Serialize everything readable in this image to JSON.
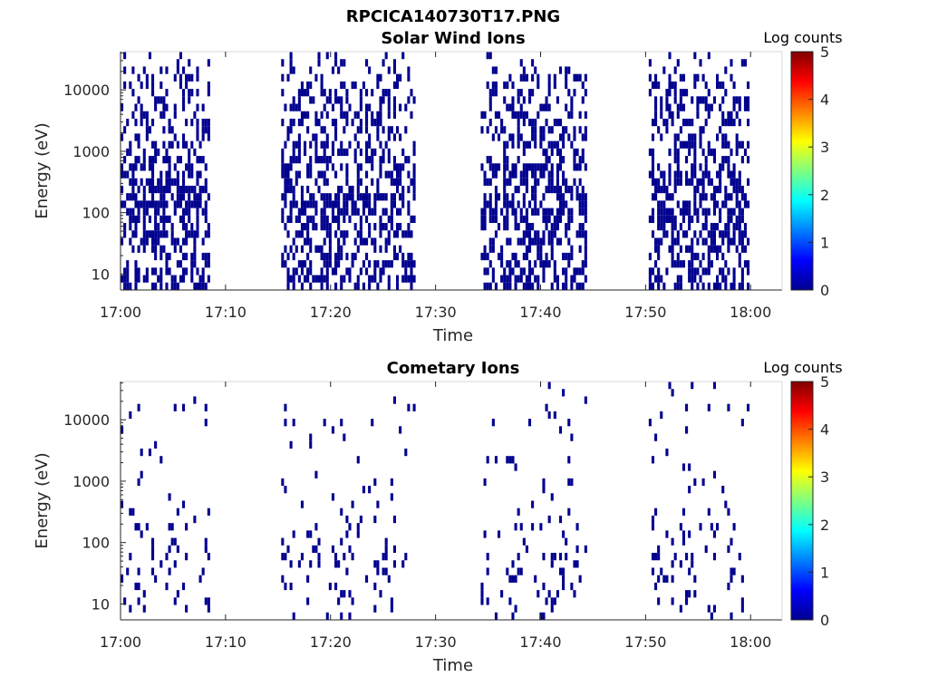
{
  "figure": {
    "title": "RPCICA140730T17.PNG"
  },
  "colors": {
    "low_count": "#00008f",
    "axis": "#262626"
  },
  "chart_data": [
    {
      "type": "heatmap",
      "title": "Solar Wind Ions",
      "xlabel": "Time",
      "ylabel": "Energy (eV)",
      "xticks": [
        "17:00",
        "17:10",
        "17:20",
        "17:30",
        "17:40",
        "17:50",
        "18:00"
      ],
      "xlim": [
        "17:00",
        "18:03"
      ],
      "yscale": "log",
      "yticks": [
        "10",
        "100",
        "1000",
        "10000"
      ],
      "ylim": [
        5.5,
        42000
      ],
      "colorbar": {
        "label": "Log counts",
        "range": [
          0,
          5
        ],
        "ticks": [
          "0",
          "1",
          "2",
          "3",
          "4",
          "5"
        ],
        "colormap": "jet"
      },
      "active_intervals": [
        [
          "17:00",
          "17:08.5"
        ],
        [
          "17:15.3",
          "17:27.9"
        ],
        [
          "17:34.3",
          "17:44.2"
        ],
        [
          "17:50.3",
          "17:59.9"
        ]
      ],
      "density_by_energy": [
        {
          "energy_ev": 10,
          "fraction_nonzero": 0.45
        },
        {
          "energy_ev": 30,
          "fraction_nonzero": 0.45
        },
        {
          "energy_ev": 100,
          "fraction_nonzero": 0.55
        },
        {
          "energy_ev": 300,
          "fraction_nonzero": 0.5
        },
        {
          "energy_ev": 1000,
          "fraction_nonzero": 0.4
        },
        {
          "energy_ev": 3000,
          "fraction_nonzero": 0.35
        },
        {
          "energy_ev": 10000,
          "fraction_nonzero": 0.3
        },
        {
          "energy_ev": 30000,
          "fraction_nonzero": 0.12
        }
      ],
      "typical_log_counts": 0.1
    },
    {
      "type": "heatmap",
      "title": "Cometary Ions",
      "xlabel": "Time",
      "ylabel": "Energy (eV)",
      "xticks": [
        "17:00",
        "17:10",
        "17:20",
        "17:30",
        "17:40",
        "17:50",
        "18:00"
      ],
      "xlim": [
        "17:00",
        "18:03"
      ],
      "yscale": "log",
      "yticks": [
        "10",
        "100",
        "1000",
        "10000"
      ],
      "ylim": [
        5.5,
        42000
      ],
      "colorbar": {
        "label": "Log counts",
        "range": [
          0,
          5
        ],
        "ticks": [
          "0",
          "1",
          "2",
          "3",
          "4",
          "5"
        ],
        "colormap": "jet"
      },
      "active_intervals": [
        [
          "17:00",
          "17:08.5"
        ],
        [
          "17:15.3",
          "17:27.9"
        ],
        [
          "17:34.3",
          "17:44.2"
        ],
        [
          "17:50.3",
          "17:59.9"
        ]
      ],
      "density_by_energy": [
        {
          "energy_ev": 10,
          "fraction_nonzero": 0.08
        },
        {
          "energy_ev": 30,
          "fraction_nonzero": 0.14
        },
        {
          "energy_ev": 100,
          "fraction_nonzero": 0.12
        },
        {
          "energy_ev": 300,
          "fraction_nonzero": 0.06
        },
        {
          "energy_ev": 1000,
          "fraction_nonzero": 0.03
        },
        {
          "energy_ev": 3000,
          "fraction_nonzero": 0.02
        },
        {
          "energy_ev": 10000,
          "fraction_nonzero": 0.03
        },
        {
          "energy_ev": 30000,
          "fraction_nonzero": 0.02
        }
      ],
      "typical_log_counts": 0.1
    }
  ]
}
